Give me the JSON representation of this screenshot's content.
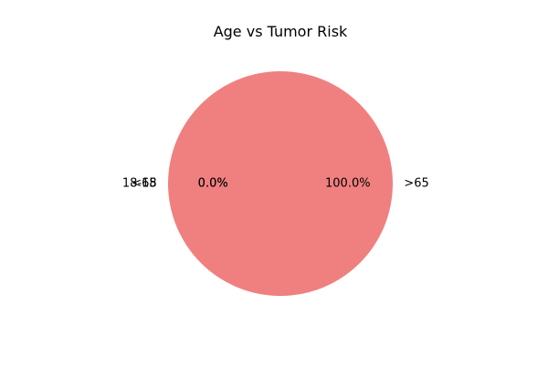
{
  "chart_data": {
    "type": "pie",
    "title": "Age vs Tumor Risk",
    "categories": [
      ">65",
      "<18",
      "18-65"
    ],
    "values": [
      100.0,
      0.0,
      0.0
    ],
    "percent_labels": [
      "100.0%",
      "0.0%",
      "0.0%"
    ],
    "colors": [
      "#f08080",
      "#87ceeb",
      "#90ee90"
    ],
    "start_angle_deg": 180,
    "legend": "none"
  }
}
